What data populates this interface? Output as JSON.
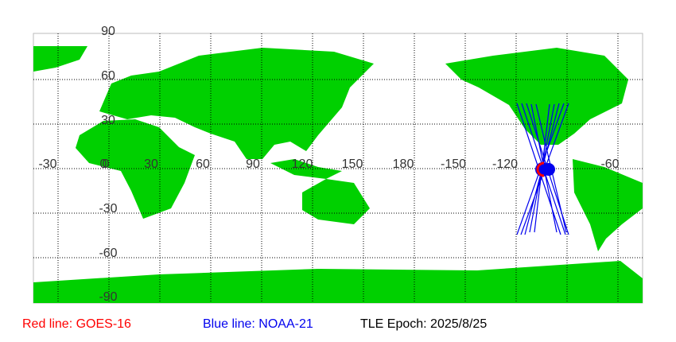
{
  "map": {
    "lat_labels": [
      "90",
      "60",
      "30",
      "0",
      "-30",
      "-60",
      "-90"
    ],
    "lon_labels": [
      "-30",
      "0",
      "30",
      "60",
      "90",
      "120",
      "150",
      "180",
      "-150",
      "-120",
      "-60"
    ]
  },
  "legend": {
    "red": "Red line: GOES-16",
    "blue": "Blue line: NOAA-21",
    "epoch": "TLE Epoch: 2025/8/25"
  }
}
